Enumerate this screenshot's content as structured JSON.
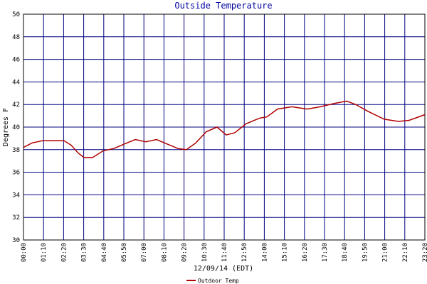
{
  "chart_data": {
    "type": "line",
    "title": "Outside Temperature",
    "x_label": "12/09/14 (EDT)",
    "y_label": "Degrees F",
    "xlim": [
      0,
      1400
    ],
    "ylim": [
      30,
      50
    ],
    "yticks": [
      30,
      32,
      34,
      36,
      38,
      40,
      42,
      44,
      46,
      48,
      50
    ],
    "xticks": [
      {
        "value": 0,
        "label": "00:00"
      },
      {
        "value": 70,
        "label": "01:10"
      },
      {
        "value": 140,
        "label": "02:20"
      },
      {
        "value": 210,
        "label": "03:30"
      },
      {
        "value": 280,
        "label": "04:40"
      },
      {
        "value": 350,
        "label": "05:50"
      },
      {
        "value": 420,
        "label": "07:00"
      },
      {
        "value": 490,
        "label": "08:10"
      },
      {
        "value": 560,
        "label": "09:20"
      },
      {
        "value": 630,
        "label": "10:30"
      },
      {
        "value": 700,
        "label": "11:40"
      },
      {
        "value": 770,
        "label": "12:50"
      },
      {
        "value": 840,
        "label": "14:00"
      },
      {
        "value": 910,
        "label": "15:10"
      },
      {
        "value": 980,
        "label": "16:20"
      },
      {
        "value": 1050,
        "label": "17:30"
      },
      {
        "value": 1120,
        "label": "18:40"
      },
      {
        "value": 1190,
        "label": "19:50"
      },
      {
        "value": 1260,
        "label": "21:00"
      },
      {
        "value": 1330,
        "label": "22:10"
      },
      {
        "value": 1400,
        "label": "23:20"
      }
    ],
    "grid": true,
    "legend": "bottom",
    "x": [
      0,
      30,
      67,
      141,
      166,
      191,
      211,
      241,
      278,
      315,
      352,
      390,
      427,
      464,
      501,
      539,
      568,
      601,
      638,
      675,
      707,
      737,
      777,
      824,
      849,
      886,
      936,
      990,
      1035,
      1085,
      1127,
      1159,
      1201,
      1258,
      1308,
      1345,
      1400
    ],
    "series": [
      {
        "name": "Outdoor Temp",
        "color": "#b00000",
        "values": [
          38.2,
          38.6,
          38.8,
          38.8,
          38.4,
          37.7,
          37.3,
          37.3,
          37.9,
          38.1,
          38.5,
          38.9,
          38.7,
          38.9,
          38.5,
          38.1,
          38.0,
          38.6,
          39.6,
          40.0,
          39.3,
          39.5,
          40.3,
          40.8,
          40.9,
          41.6,
          41.8,
          41.6,
          41.8,
          42.1,
          42.3,
          42.0,
          41.4,
          40.7,
          40.5,
          40.6,
          41.1
        ]
      }
    ]
  }
}
